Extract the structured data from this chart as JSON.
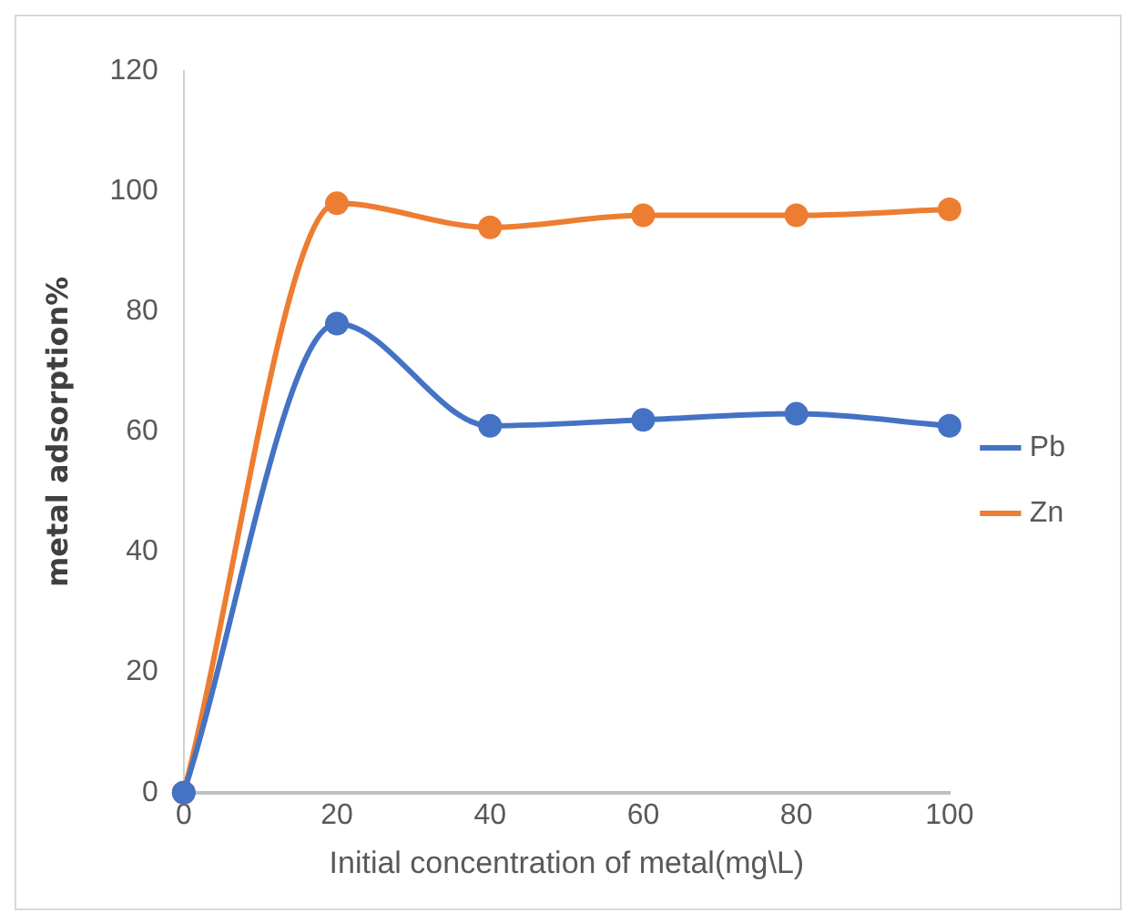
{
  "chart_data": {
    "type": "line",
    "xlabel": "Initial concentration of metal(mg\\L)",
    "ylabel": "metal adsorption%",
    "x": [
      0,
      20,
      40,
      60,
      80,
      100
    ],
    "series": [
      {
        "name": "Pb",
        "color": "#4472c4",
        "values": [
          0,
          78,
          61,
          62,
          63,
          61
        ]
      },
      {
        "name": "Zn",
        "color": "#ed7d31",
        "values": [
          0,
          98,
          94,
          96,
          96,
          97
        ]
      }
    ],
    "xlim": [
      0,
      100
    ],
    "xticks": [
      0,
      20,
      40,
      60,
      80,
      100
    ],
    "ylim": [
      0,
      120
    ],
    "yticks": [
      0,
      20,
      40,
      60,
      80,
      100,
      120
    ],
    "grid": false,
    "legend": "right",
    "marker": "circle",
    "line_style": "solid"
  }
}
